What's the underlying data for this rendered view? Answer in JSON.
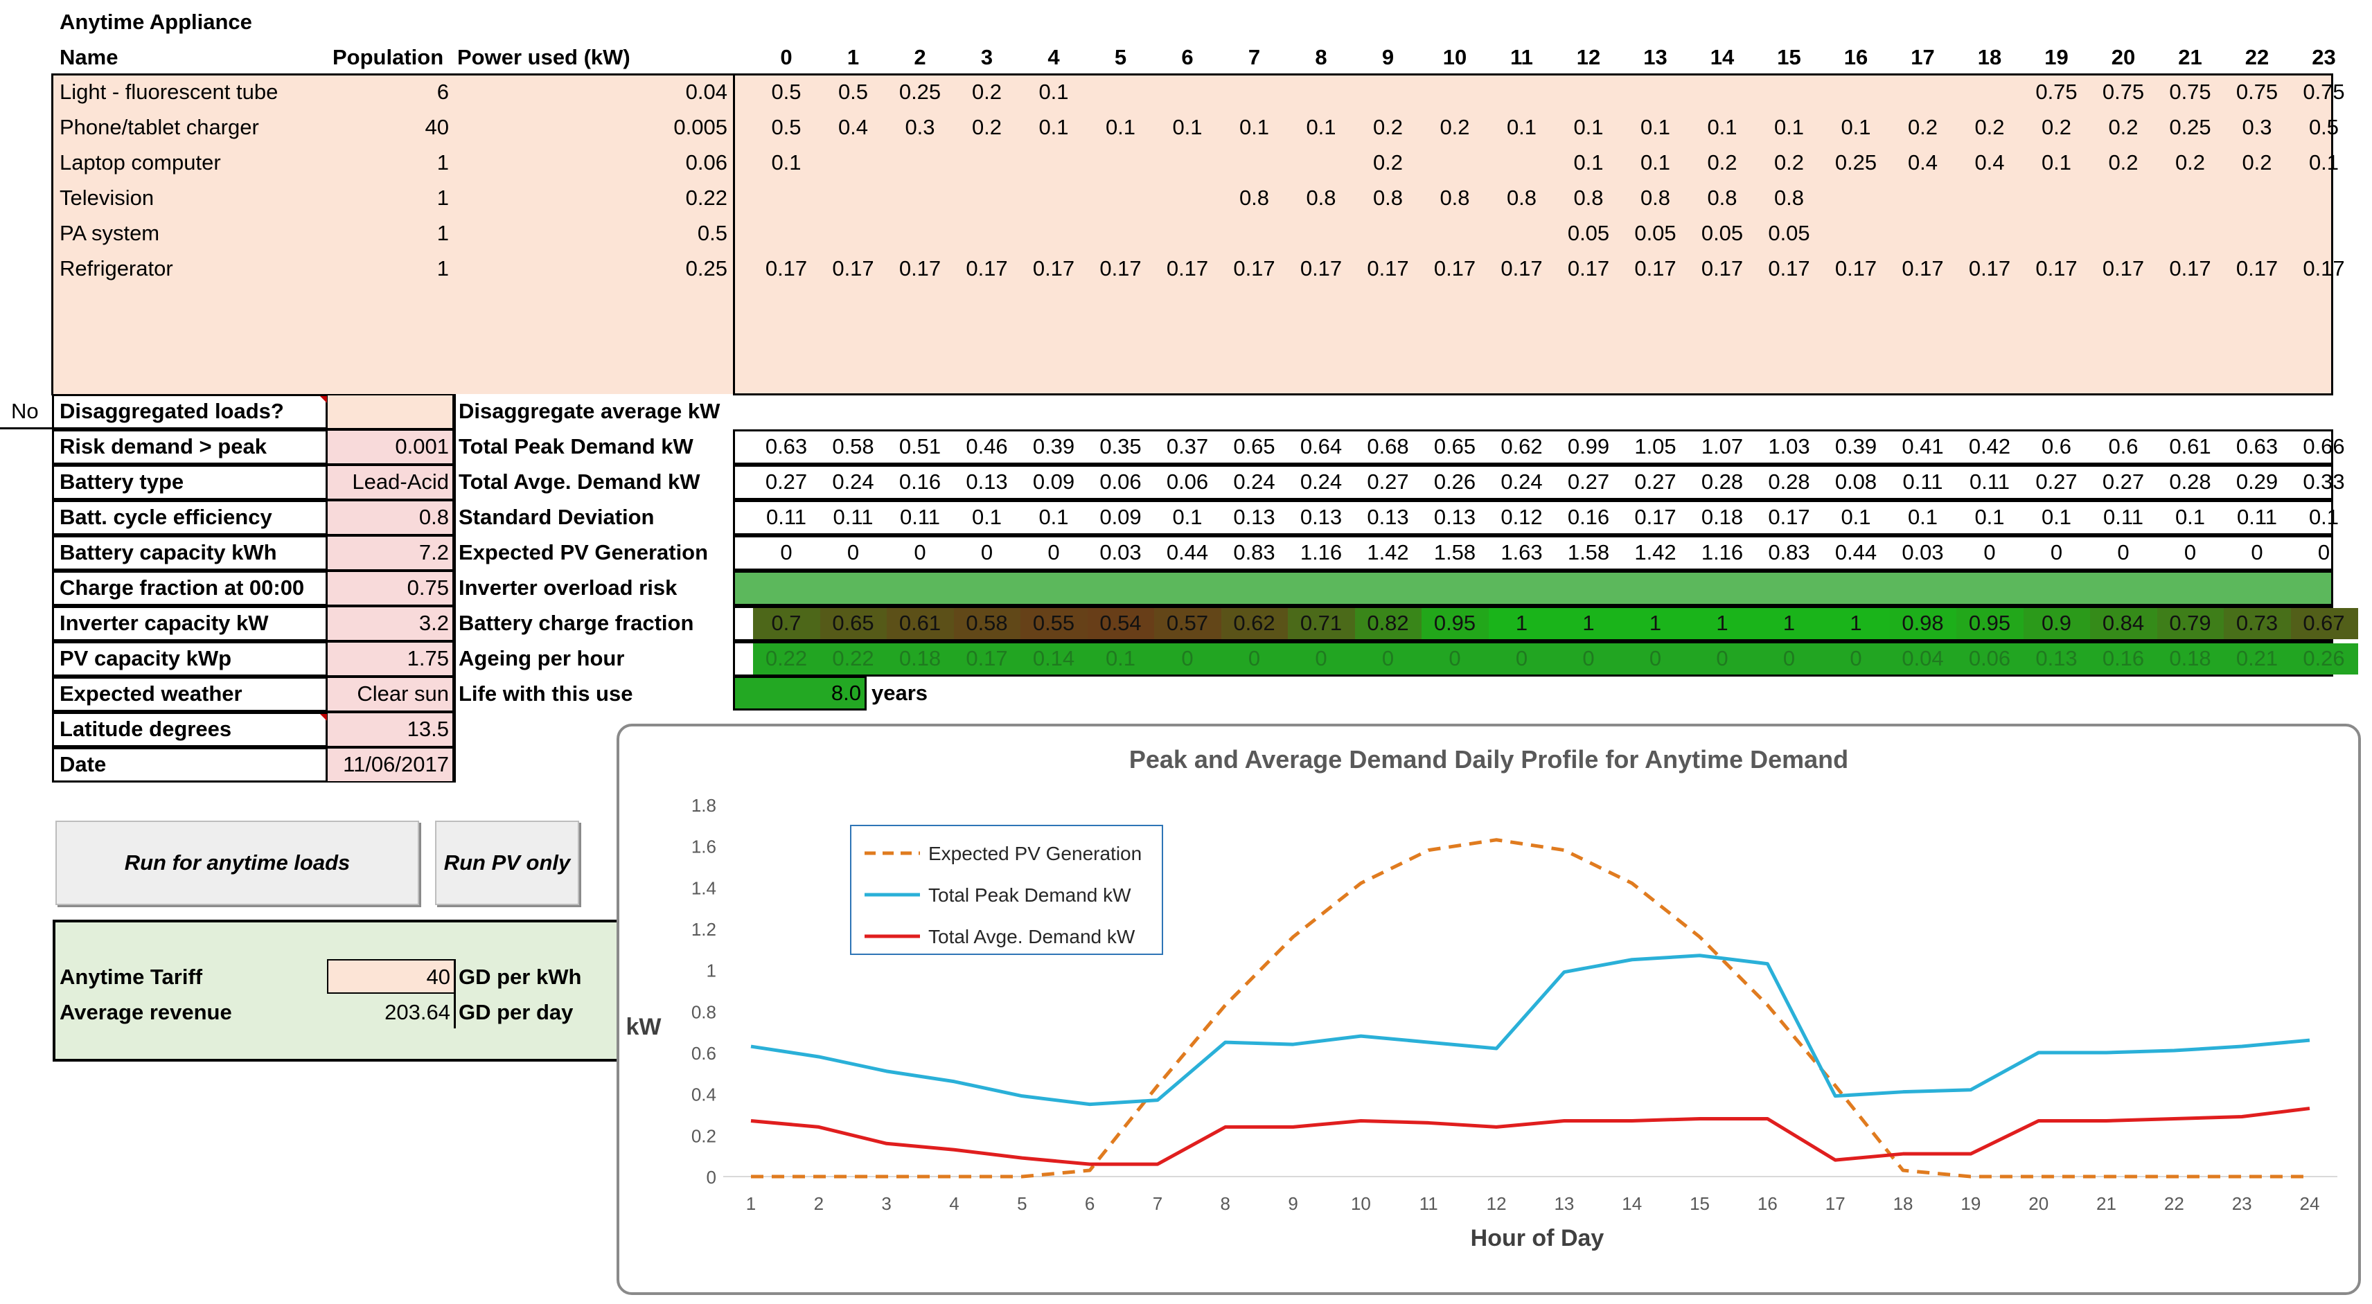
{
  "sheet": {
    "title": "Anytime Appliance",
    "headers": {
      "name": "Name",
      "population": "Population",
      "power": "Power used (kW)"
    },
    "hours": [
      "0",
      "1",
      "2",
      "3",
      "4",
      "5",
      "6",
      "7",
      "8",
      "9",
      "10",
      "11",
      "12",
      "13",
      "14",
      "15",
      "16",
      "17",
      "18",
      "19",
      "20",
      "21",
      "22",
      "23"
    ],
    "appliances": [
      {
        "name": "Light - fluorescent tube",
        "population": "6",
        "power": "0.04",
        "hourly": [
          "0.5",
          "0.5",
          "0.25",
          "0.2",
          "0.1",
          "",
          "",
          "",
          "",
          "",
          "",
          "",
          "",
          "",
          "",
          "",
          "",
          "",
          "",
          "0.75",
          "0.75",
          "0.75",
          "0.75",
          "0.75"
        ]
      },
      {
        "name": "Phone/tablet charger",
        "population": "40",
        "power": "0.005",
        "hourly": [
          "0.5",
          "0.4",
          "0.3",
          "0.2",
          "0.1",
          "0.1",
          "0.1",
          "0.1",
          "0.1",
          "0.2",
          "0.2",
          "0.1",
          "0.1",
          "0.1",
          "0.1",
          "0.1",
          "0.1",
          "0.2",
          "0.2",
          "0.2",
          "0.2",
          "0.25",
          "0.3",
          "0.5"
        ]
      },
      {
        "name": "Laptop computer",
        "population": "1",
        "power": "0.06",
        "hourly": [
          "0.1",
          "",
          "",
          "",
          "",
          "",
          "",
          "",
          "",
          "0.2",
          "",
          "",
          "0.1",
          "0.1",
          "0.2",
          "0.2",
          "0.25",
          "0.4",
          "0.4",
          "0.1",
          "0.2",
          "0.2",
          "0.2",
          "0.1"
        ]
      },
      {
        "name": "Television",
        "population": "1",
        "power": "0.22",
        "hourly": [
          "",
          "",
          "",
          "",
          "",
          "",
          "",
          "0.8",
          "0.8",
          "0.8",
          "0.8",
          "0.8",
          "0.8",
          "0.8",
          "0.8",
          "0.8",
          "",
          "",
          "",
          "",
          "",
          "",
          "",
          ""
        ]
      },
      {
        "name": "PA system",
        "population": "1",
        "power": "0.5",
        "hourly": [
          "",
          "",
          "",
          "",
          "",
          "",
          "",
          "",
          "",
          "",
          "",
          "",
          "0.05",
          "0.05",
          "0.05",
          "0.05",
          "",
          "",
          "",
          "",
          "",
          "",
          "",
          ""
        ]
      },
      {
        "name": "Refrigerator",
        "population": "1",
        "power": "0.25",
        "hourly": [
          "0.17",
          "0.17",
          "0.17",
          "0.17",
          "0.17",
          "0.17",
          "0.17",
          "0.17",
          "0.17",
          "0.17",
          "0.17",
          "0.17",
          "0.17",
          "0.17",
          "0.17",
          "0.17",
          "0.17",
          "0.17",
          "0.17",
          "0.17",
          "0.17",
          "0.17",
          "0.17",
          "0.17"
        ]
      }
    ],
    "params": [
      {
        "label": "Disaggregated loads?",
        "value": ""
      },
      {
        "label": "Risk demand > peak",
        "value": "0.001"
      },
      {
        "label": "Battery type",
        "value": "Lead-Acid"
      },
      {
        "label": "Batt. cycle efficiency",
        "value": "0.8"
      },
      {
        "label": "Battery capacity kWh",
        "value": "7.2"
      },
      {
        "label": "Charge fraction at 00:00",
        "value": "0.75"
      },
      {
        "label": "Inverter capacity kW",
        "value": "3.2"
      },
      {
        "label": "PV capacity kWp",
        "value": "1.75"
      },
      {
        "label": "Expected weather",
        "value": "Clear sun"
      },
      {
        "label": "Latitude degrees",
        "value": "13.5"
      },
      {
        "label": "Date",
        "value": "11/06/2017"
      }
    ],
    "no_label": "No",
    "results": [
      {
        "label": "Disaggregate average kW",
        "values": []
      },
      {
        "label": "Total Peak Demand kW",
        "values": [
          "0.63",
          "0.58",
          "0.51",
          "0.46",
          "0.39",
          "0.35",
          "0.37",
          "0.65",
          "0.64",
          "0.68",
          "0.65",
          "0.62",
          "0.99",
          "1.05",
          "1.07",
          "1.03",
          "0.39",
          "0.41",
          "0.42",
          "0.6",
          "0.6",
          "0.61",
          "0.63",
          "0.66"
        ]
      },
      {
        "label": "Total Avge. Demand kW",
        "values": [
          "0.27",
          "0.24",
          "0.16",
          "0.13",
          "0.09",
          "0.06",
          "0.06",
          "0.24",
          "0.24",
          "0.27",
          "0.26",
          "0.24",
          "0.27",
          "0.27",
          "0.28",
          "0.28",
          "0.08",
          "0.11",
          "0.11",
          "0.27",
          "0.27",
          "0.28",
          "0.29",
          "0.33"
        ]
      },
      {
        "label": "Standard Deviation",
        "values": [
          "0.11",
          "0.11",
          "0.11",
          "0.1",
          "0.1",
          "0.09",
          "0.1",
          "0.13",
          "0.13",
          "0.13",
          "0.13",
          "0.12",
          "0.16",
          "0.17",
          "0.18",
          "0.17",
          "0.1",
          "0.1",
          "0.1",
          "0.1",
          "0.11",
          "0.1",
          "0.11",
          "0.1"
        ]
      },
      {
        "label": "Expected PV Generation",
        "values": [
          "0",
          "0",
          "0",
          "0",
          "0",
          "0.03",
          "0.44",
          "0.83",
          "1.16",
          "1.42",
          "1.58",
          "1.63",
          "1.58",
          "1.42",
          "1.16",
          "0.83",
          "0.44",
          "0.03",
          "0",
          "0",
          "0",
          "0",
          "0",
          "0"
        ]
      },
      {
        "label": "Inverter overload risk",
        "values": []
      },
      {
        "label": "Battery charge fraction",
        "values": [
          "0.7",
          "0.65",
          "0.61",
          "0.58",
          "0.55",
          "0.54",
          "0.57",
          "0.62",
          "0.71",
          "0.82",
          "0.95",
          "1",
          "1",
          "1",
          "1",
          "1",
          "1",
          "0.98",
          "0.95",
          "0.9",
          "0.84",
          "0.79",
          "0.73",
          "0.67"
        ]
      },
      {
        "label": "Ageing per hour",
        "values": [
          "0.22",
          "0.22",
          "0.18",
          "0.17",
          "0.14",
          "0.1",
          "0",
          "0",
          "0",
          "0",
          "0",
          "0",
          "0",
          "0",
          "0",
          "0",
          "0",
          "0.04",
          "0.06",
          "0.13",
          "0.16",
          "0.18",
          "0.21",
          "0.26"
        ]
      },
      {
        "label": "Life with this use",
        "values": []
      }
    ],
    "life": {
      "value": "8.0",
      "unit": "years"
    },
    "buttons": {
      "run_anytime": "Run for anytime loads",
      "run_pv": "Run PV only"
    },
    "tariff": {
      "label": "Anytime Tariff",
      "value": "40",
      "unit": "GD per kWh"
    },
    "revenue": {
      "label": "Average revenue",
      "value": "203.64",
      "unit": "GD per day"
    },
    "colors": {
      "input_fill": "#fce4d6",
      "param_fill": "#f8dada",
      "green_light": "#5cb85c",
      "green_dark": "#1a9a1a",
      "brown_dark": "#5c3a17",
      "pv_color": "#e07b1f",
      "peak_color": "#2ab0d8",
      "avg_color": "#e01e1e"
    }
  },
  "chart_data": {
    "type": "line",
    "title": "Peak and Average Demand Daily Profile for Anytime Demand",
    "xlabel": "Hour of Day",
    "ylabel": "kW",
    "x": [
      "1",
      "2",
      "3",
      "4",
      "5",
      "6",
      "7",
      "8",
      "9",
      "10",
      "11",
      "12",
      "13",
      "14",
      "15",
      "16",
      "17",
      "18",
      "19",
      "20",
      "21",
      "22",
      "23",
      "24"
    ],
    "ylim": [
      0,
      1.8
    ],
    "yticks": [
      "0",
      "0.2",
      "0.4",
      "0.6",
      "0.8",
      "1",
      "1.2",
      "1.4",
      "1.6",
      "1.8"
    ],
    "legend_position": "top-left",
    "series": [
      {
        "name": "Expected PV Generation",
        "style": "dashed",
        "color": "#e07b1f",
        "values": [
          0,
          0,
          0,
          0,
          0,
          0.03,
          0.44,
          0.83,
          1.16,
          1.42,
          1.58,
          1.63,
          1.58,
          1.42,
          1.16,
          0.83,
          0.44,
          0.03,
          0,
          0,
          0,
          0,
          0,
          0
        ]
      },
      {
        "name": "Total Peak Demand kW",
        "style": "solid",
        "color": "#2ab0d8",
        "values": [
          0.63,
          0.58,
          0.51,
          0.46,
          0.39,
          0.35,
          0.37,
          0.65,
          0.64,
          0.68,
          0.65,
          0.62,
          0.99,
          1.05,
          1.07,
          1.03,
          0.39,
          0.41,
          0.42,
          0.6,
          0.6,
          0.61,
          0.63,
          0.66
        ]
      },
      {
        "name": "Total Avge. Demand kW",
        "style": "solid",
        "color": "#e01e1e",
        "values": [
          0.27,
          0.24,
          0.16,
          0.13,
          0.09,
          0.06,
          0.06,
          0.24,
          0.24,
          0.27,
          0.26,
          0.24,
          0.27,
          0.27,
          0.28,
          0.28,
          0.08,
          0.11,
          0.11,
          0.27,
          0.27,
          0.28,
          0.29,
          0.33
        ]
      }
    ]
  }
}
